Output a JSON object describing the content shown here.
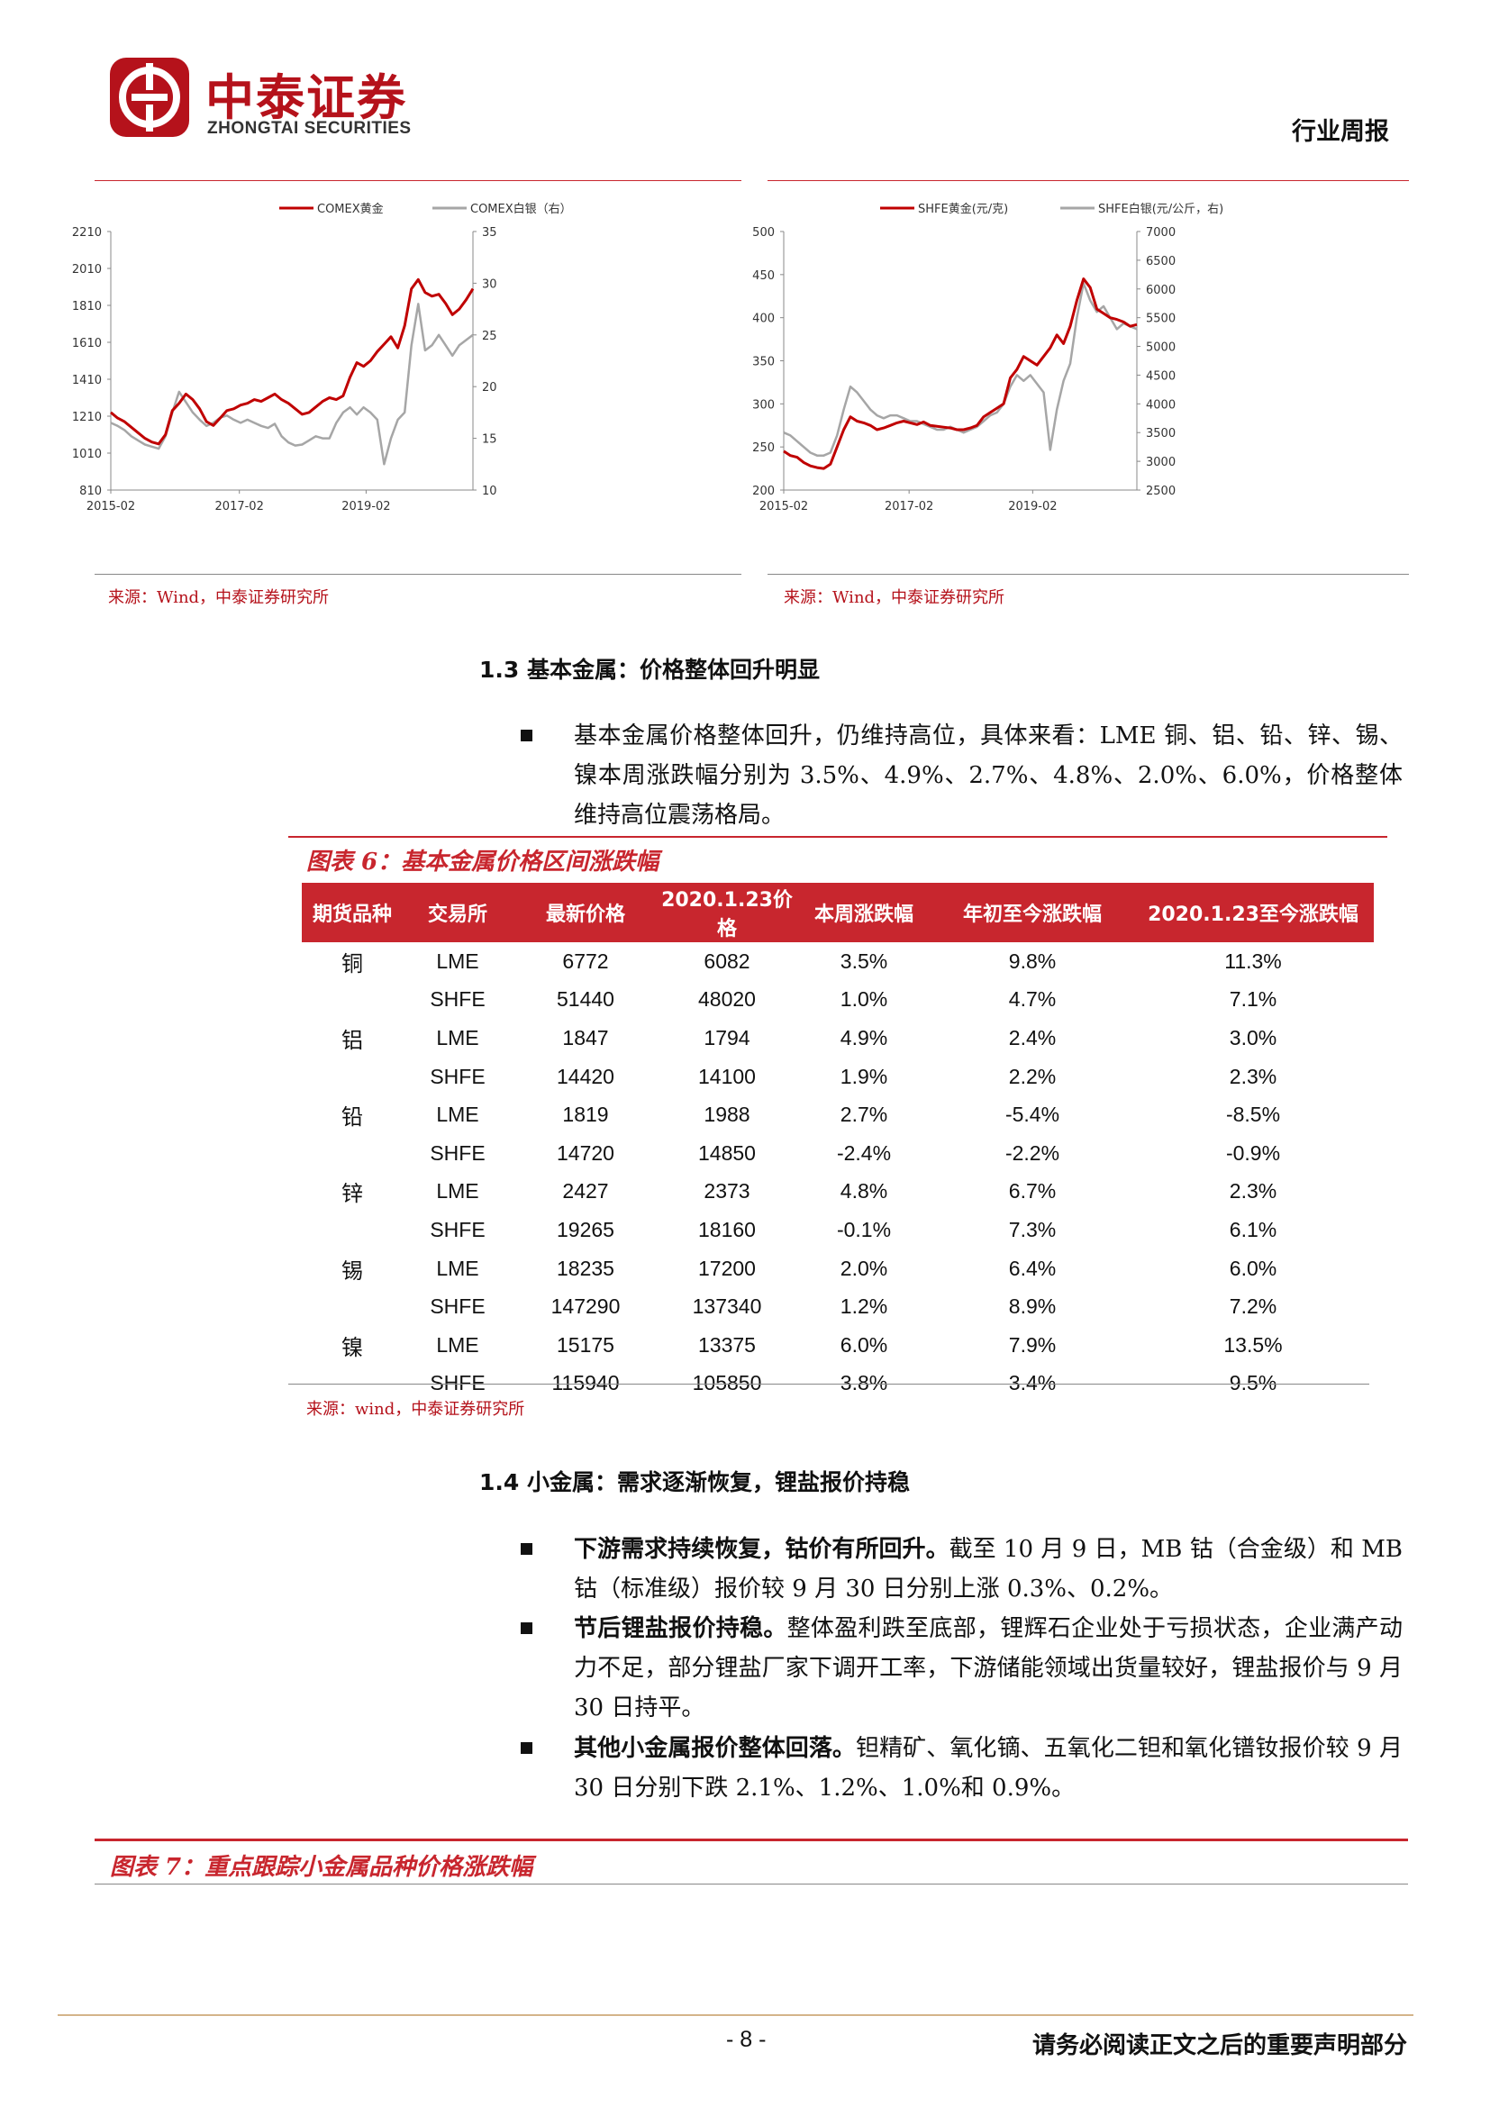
{
  "header": {
    "logo_cn": "中泰证券",
    "logo_en": "ZHONGTAI SECURITIES",
    "report_type": "行业周报"
  },
  "chart_left": {
    "source": "来源：Wind，中泰证券研究所"
  },
  "chart_right": {
    "source": "来源：Wind，中泰证券研究所"
  },
  "chart_data": [
    {
      "type": "line",
      "legend": [
        "COMEX黄金",
        "COMEX白银（右）"
      ],
      "y_left_ticks": [
        "2210",
        "2010",
        "1810",
        "1610",
        "1410",
        "1210",
        "1010",
        "810"
      ],
      "y_right_ticks": [
        "35",
        "30",
        "25",
        "20",
        "15",
        "10"
      ],
      "x_ticks": [
        "2015-02",
        "2017-02",
        "2019-02"
      ],
      "ylim_left": [
        810,
        2210
      ],
      "ylim_right": [
        10,
        35
      ],
      "series": [
        {
          "name": "COMEX黄金",
          "color": "#c00000",
          "values": [
            1230,
            1200,
            1180,
            1150,
            1120,
            1090,
            1070,
            1060,
            1110,
            1240,
            1280,
            1330,
            1300,
            1250,
            1180,
            1160,
            1200,
            1240,
            1250,
            1270,
            1280,
            1300,
            1290,
            1310,
            1330,
            1300,
            1280,
            1250,
            1220,
            1230,
            1260,
            1290,
            1310,
            1300,
            1320,
            1420,
            1500,
            1480,
            1510,
            1560,
            1600,
            1640,
            1580,
            1700,
            1900,
            1950,
            1880,
            1860,
            1870,
            1820,
            1760,
            1790,
            1840,
            1900
          ]
        },
        {
          "name": "COMEX白银（右）",
          "color": "#a6a6a6",
          "values": [
            16.5,
            16.2,
            15.8,
            15.2,
            14.8,
            14.4,
            14.2,
            14.0,
            15.2,
            17.5,
            19.5,
            18.5,
            17.5,
            16.8,
            16.2,
            16.5,
            17.0,
            17.2,
            16.8,
            16.5,
            16.8,
            16.5,
            16.2,
            16.0,
            16.4,
            15.2,
            14.6,
            14.3,
            14.4,
            14.8,
            15.2,
            15.0,
            15.0,
            16.5,
            17.5,
            18.0,
            17.3,
            18.0,
            17.5,
            16.8,
            12.5,
            15.0,
            16.8,
            17.5,
            24.0,
            28.0,
            23.5,
            24.0,
            25.0,
            24.0,
            23.0,
            24.0,
            24.5,
            25.0
          ]
        }
      ]
    },
    {
      "type": "line",
      "legend": [
        "SHFE黄金(元/克)",
        "SHFE白银(元/公斤，右)"
      ],
      "y_left_ticks": [
        "500",
        "450",
        "400",
        "350",
        "300",
        "250",
        "200"
      ],
      "y_right_ticks": [
        "7000",
        "6500",
        "6000",
        "5500",
        "5000",
        "4500",
        "4000",
        "3500",
        "3000",
        "2500"
      ],
      "x_ticks": [
        "2015-02",
        "2017-02",
        "2019-02"
      ],
      "ylim_left": [
        200,
        500
      ],
      "ylim_right": [
        2500,
        7000
      ],
      "series": [
        {
          "name": "SHFE黄金(元/克)",
          "color": "#c00000",
          "values": [
            245,
            240,
            238,
            232,
            228,
            226,
            225,
            230,
            250,
            270,
            285,
            280,
            278,
            275,
            270,
            272,
            275,
            278,
            280,
            278,
            276,
            279,
            275,
            274,
            273,
            272,
            270,
            270,
            272,
            275,
            285,
            290,
            295,
            300,
            330,
            340,
            355,
            350,
            345,
            355,
            365,
            380,
            370,
            390,
            420,
            445,
            435,
            410,
            405,
            400,
            398,
            395,
            390,
            392
          ]
        },
        {
          "name": "SHFE白银(元/公斤，右)",
          "color": "#a6a6a6",
          "values": [
            3500,
            3450,
            3350,
            3250,
            3150,
            3100,
            3100,
            3150,
            3450,
            3900,
            4300,
            4200,
            4050,
            3900,
            3800,
            3750,
            3800,
            3800,
            3750,
            3700,
            3700,
            3650,
            3600,
            3550,
            3550,
            3600,
            3550,
            3500,
            3550,
            3600,
            3700,
            3800,
            3850,
            4000,
            4300,
            4500,
            4400,
            4500,
            4350,
            4200,
            3200,
            3900,
            4400,
            4700,
            5500,
            6100,
            5800,
            5600,
            5700,
            5500,
            5300,
            5400,
            5350,
            5300
          ]
        }
      ]
    }
  ],
  "section_13": {
    "title": "1.3 基本金属：价格整体回升明显",
    "bullet": "基本金属价格整体回升，仍维持高位，具体来看：LME 铜、铝、铅、锌、锡、镍本周涨跌幅分别为 3.5%、4.9%、2.7%、4.8%、2.0%、6.0%，价格整体维持高位震荡格局。"
  },
  "figure6": {
    "title": "图表 6：基本金属价格区间涨跌幅",
    "columns": [
      "期货品种",
      "交易所",
      "最新价格",
      "2020.1.23价格",
      "本周涨跌幅",
      "年初至今涨跌幅",
      "2020.1.23至今涨跌幅"
    ],
    "rows": [
      [
        "铜",
        "LME",
        "6772",
        "6082",
        "3.5%",
        "9.8%",
        "11.3%"
      ],
      [
        "",
        "SHFE",
        "51440",
        "48020",
        "1.0%",
        "4.7%",
        "7.1%"
      ],
      [
        "铝",
        "LME",
        "1847",
        "1794",
        "4.9%",
        "2.4%",
        "3.0%"
      ],
      [
        "",
        "SHFE",
        "14420",
        "14100",
        "1.9%",
        "2.2%",
        "2.3%"
      ],
      [
        "铅",
        "LME",
        "1819",
        "1988",
        "2.7%",
        "-5.4%",
        "-8.5%"
      ],
      [
        "",
        "SHFE",
        "14720",
        "14850",
        "-2.4%",
        "-2.2%",
        "-0.9%"
      ],
      [
        "锌",
        "LME",
        "2427",
        "2373",
        "4.8%",
        "6.7%",
        "2.3%"
      ],
      [
        "",
        "SHFE",
        "19265",
        "18160",
        "-0.1%",
        "7.3%",
        "6.1%"
      ],
      [
        "锡",
        "LME",
        "18235",
        "17200",
        "2.0%",
        "6.4%",
        "6.0%"
      ],
      [
        "",
        "SHFE",
        "147290",
        "137340",
        "1.2%",
        "8.9%",
        "7.2%"
      ],
      [
        "镍",
        "LME",
        "15175",
        "13375",
        "6.0%",
        "7.9%",
        "13.5%"
      ],
      [
        "",
        "SHFE",
        "115940",
        "105850",
        "3.8%",
        "3.4%",
        "9.5%"
      ]
    ],
    "source": "来源：wind，中泰证券研究所"
  },
  "section_14": {
    "title": "1.4 小金属：需求逐渐恢复，锂盐报价持稳",
    "bullets": [
      {
        "bold": "下游需求持续恢复，钴价有所回升。",
        "text": "截至 10 月 9 日，MB 钴（合金级）和 MB 钴（标准级）报价较 9 月 30 日分别上涨 0.3%、0.2%。"
      },
      {
        "bold": "节后锂盐报价持稳。",
        "text": "整体盈利跌至底部，锂辉石企业处于亏损状态，企业满产动力不足，部分锂盐厂家下调开工率，下游储能领域出货量较好，锂盐报价与 9 月 30 日持平。"
      },
      {
        "bold": "其他小金属报价整体回落。",
        "text": "钽精矿、氧化镝、五氧化二钽和氧化镨钕报价较 9 月 30 日分别下跌 2.1%、1.2%、1.0%和 0.9%。"
      }
    ]
  },
  "figure7": {
    "title": "图表 7：重点跟踪小金属品种价格涨跌幅"
  },
  "footer": {
    "page": "- 8 -",
    "disclaimer": "请务必阅读正文之后的重要声明部分"
  }
}
